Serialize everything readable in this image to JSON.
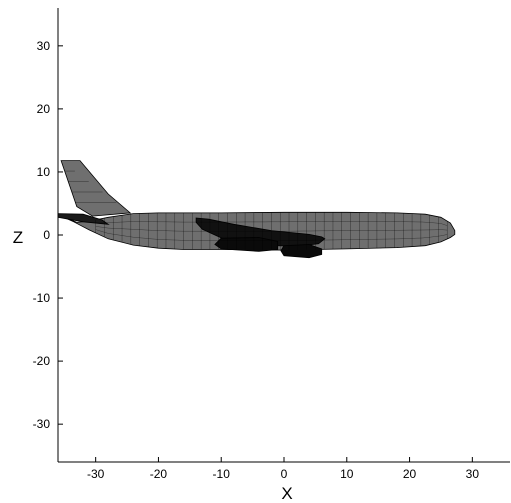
{
  "figure": {
    "x_axis_label": "X",
    "z_axis_label": "Z"
  },
  "chart_data": {
    "type": "line",
    "title": "",
    "xlabel": "X",
    "ylabel": "Z",
    "xlim": [
      -36,
      36
    ],
    "ylim": [
      -36,
      36
    ],
    "xticks": [
      -30,
      -20,
      -10,
      0,
      10,
      20,
      30
    ],
    "yticks": [
      30,
      20,
      10,
      0,
      -10,
      -20,
      -30
    ],
    "xtick_labels": [
      "-30",
      "-20",
      "-10",
      "0",
      "10",
      "20",
      "30"
    ],
    "ytick_labels": [
      "30",
      "20",
      "10",
      "0",
      "-10",
      "-20",
      "-30"
    ],
    "grid": false,
    "colors": {
      "surface": "#6f6f6f",
      "mesh": "#000000",
      "background": "#ffffff"
    },
    "series": [
      {
        "role": "fuselage",
        "points": [
          [
            27.2,
            0.7
          ],
          [
            26.5,
            1.9
          ],
          [
            25,
            2.8
          ],
          [
            22.5,
            3.3
          ],
          [
            18,
            3.5
          ],
          [
            10,
            3.6
          ],
          [
            0,
            3.6
          ],
          [
            -10,
            3.5
          ],
          [
            -20,
            3.5
          ],
          [
            -24,
            3.4
          ],
          [
            -28,
            2.8
          ],
          [
            -31,
            2.2
          ],
          [
            -33,
            2
          ],
          [
            -35.5,
            3.1
          ],
          [
            -35.5,
            3
          ],
          [
            -33.5,
            2.1
          ],
          [
            -31,
            0.8
          ],
          [
            -28,
            -0.6
          ],
          [
            -24,
            -1.6
          ],
          [
            -20,
            -2.1
          ],
          [
            -16,
            -2.3
          ],
          [
            -10,
            -2.3
          ],
          [
            0,
            -2.4
          ],
          [
            10,
            -2.2
          ],
          [
            18,
            -2
          ],
          [
            22.5,
            -1.7
          ],
          [
            25,
            -1.1
          ],
          [
            26.5,
            -0.4
          ],
          [
            27.2,
            0.1
          ]
        ]
      },
      {
        "role": "vertical-tail",
        "points": [
          [
            -35.5,
            11.8
          ],
          [
            -32.5,
            11.8
          ],
          [
            -28,
            6.5
          ],
          [
            -24.5,
            3.5
          ],
          [
            -30.5,
            3
          ],
          [
            -33,
            4.5
          ]
        ]
      },
      {
        "role": "horizontal-stabilizer",
        "points": [
          [
            -36,
            3.4
          ],
          [
            -32,
            3.3
          ],
          [
            -29,
            2.4
          ],
          [
            -28,
            1.7
          ],
          [
            -32,
            2.1
          ],
          [
            -36,
            2.8
          ]
        ]
      },
      {
        "role": "wing",
        "points": [
          [
            -14,
            2.7
          ],
          [
            -12,
            2.5
          ],
          [
            -8,
            1.7
          ],
          [
            -2,
            0.7
          ],
          [
            4,
            0.1
          ],
          [
            6,
            -0.3
          ],
          [
            6.5,
            -0.6
          ],
          [
            5.5,
            -1.4
          ],
          [
            2,
            -1.8
          ],
          [
            -4,
            -1.6
          ],
          [
            -9,
            -0.9
          ],
          [
            -13,
            0.9
          ],
          [
            -14,
            2
          ]
        ]
      },
      {
        "role": "engine-left",
        "points": [
          [
            -10,
            -0.5
          ],
          [
            -4,
            -0.4
          ],
          [
            -1,
            -1
          ],
          [
            -1,
            -2.3
          ],
          [
            -4,
            -2.6
          ],
          [
            -10,
            -2.2
          ],
          [
            -11,
            -1.5
          ]
        ]
      },
      {
        "role": "engine-right",
        "points": [
          [
            0,
            -1.7
          ],
          [
            4,
            -1.5
          ],
          [
            6,
            -2.2
          ],
          [
            6,
            -3.1
          ],
          [
            4,
            -3.6
          ],
          [
            0,
            -3.3
          ],
          [
            -0.5,
            -2.5
          ]
        ]
      }
    ]
  }
}
